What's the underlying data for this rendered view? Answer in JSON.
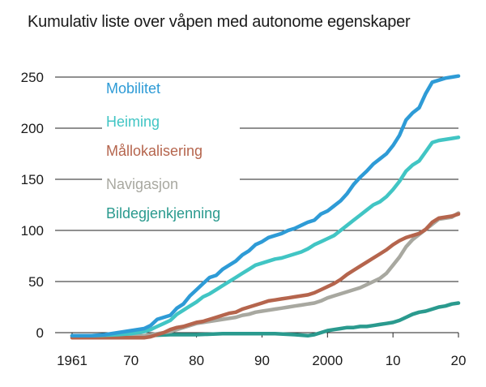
{
  "chart_data": {
    "type": "line",
    "title": "Kumulativ liste over våpen med autonome egenskaper",
    "xlabel": "",
    "ylabel": "",
    "xlim": [
      1961,
      2020
    ],
    "ylim": [
      0,
      250
    ],
    "grid": true,
    "x_ticks": [
      {
        "value": 1961,
        "label": "1961"
      },
      {
        "value": 1970,
        "label": "70"
      },
      {
        "value": 1980,
        "label": "80"
      },
      {
        "value": 1990,
        "label": "90"
      },
      {
        "value": 2000,
        "label": "2000"
      },
      {
        "value": 2010,
        "label": "10"
      },
      {
        "value": 2020,
        "label": "20"
      }
    ],
    "y_ticks": [
      {
        "value": 0,
        "label": "0"
      },
      {
        "value": 50,
        "label": "50"
      },
      {
        "value": 100,
        "label": "100"
      },
      {
        "value": 150,
        "label": "150"
      },
      {
        "value": 200,
        "label": "200"
      },
      {
        "value": 250,
        "label": "250"
      }
    ],
    "legend_position": "top-left",
    "series": [
      {
        "name": "Mobilitet",
        "color": "#2e9bd6",
        "points": [
          [
            1961,
            -3
          ],
          [
            1962,
            -3
          ],
          [
            1964,
            -3
          ],
          [
            1966,
            -2
          ],
          [
            1968,
            0
          ],
          [
            1970,
            2
          ],
          [
            1972,
            4
          ],
          [
            1973,
            7
          ],
          [
            1974,
            13
          ],
          [
            1976,
            17
          ],
          [
            1977,
            24
          ],
          [
            1978,
            28
          ],
          [
            1979,
            36
          ],
          [
            1980,
            42
          ],
          [
            1981,
            48
          ],
          [
            1982,
            54
          ],
          [
            1983,
            56
          ],
          [
            1984,
            62
          ],
          [
            1985,
            66
          ],
          [
            1986,
            70
          ],
          [
            1987,
            76
          ],
          [
            1988,
            80
          ],
          [
            1989,
            86
          ],
          [
            1990,
            89
          ],
          [
            1991,
            93
          ],
          [
            1992,
            95
          ],
          [
            1993,
            97
          ],
          [
            1994,
            100
          ],
          [
            1995,
            102
          ],
          [
            1996,
            105
          ],
          [
            1997,
            108
          ],
          [
            1998,
            110
          ],
          [
            1999,
            116
          ],
          [
            2000,
            119
          ],
          [
            2001,
            124
          ],
          [
            2002,
            129
          ],
          [
            2003,
            136
          ],
          [
            2004,
            145
          ],
          [
            2005,
            152
          ],
          [
            2006,
            158
          ],
          [
            2007,
            165
          ],
          [
            2008,
            170
          ],
          [
            2009,
            175
          ],
          [
            2010,
            183
          ],
          [
            2011,
            193
          ],
          [
            2012,
            208
          ],
          [
            2013,
            215
          ],
          [
            2014,
            220
          ],
          [
            2015,
            234
          ],
          [
            2016,
            245
          ],
          [
            2017,
            247
          ],
          [
            2018,
            249
          ],
          [
            2019,
            250
          ],
          [
            2020,
            251
          ]
        ]
      },
      {
        "name": "Heiming",
        "color": "#41c5c4",
        "points": [
          [
            1961,
            -3
          ],
          [
            1964,
            -3
          ],
          [
            1968,
            -2
          ],
          [
            1970,
            -1
          ],
          [
            1972,
            1
          ],
          [
            1973,
            3
          ],
          [
            1974,
            6
          ],
          [
            1975,
            9
          ],
          [
            1976,
            12
          ],
          [
            1977,
            18
          ],
          [
            1978,
            22
          ],
          [
            1979,
            26
          ],
          [
            1980,
            30
          ],
          [
            1981,
            35
          ],
          [
            1982,
            38
          ],
          [
            1983,
            42
          ],
          [
            1984,
            46
          ],
          [
            1985,
            50
          ],
          [
            1986,
            54
          ],
          [
            1987,
            58
          ],
          [
            1988,
            62
          ],
          [
            1989,
            66
          ],
          [
            1990,
            68
          ],
          [
            1991,
            70
          ],
          [
            1992,
            72
          ],
          [
            1993,
            73
          ],
          [
            1994,
            75
          ],
          [
            1995,
            77
          ],
          [
            1996,
            79
          ],
          [
            1997,
            82
          ],
          [
            1998,
            86
          ],
          [
            1999,
            89
          ],
          [
            2000,
            92
          ],
          [
            2001,
            95
          ],
          [
            2002,
            100
          ],
          [
            2003,
            105
          ],
          [
            2004,
            110
          ],
          [
            2005,
            115
          ],
          [
            2006,
            120
          ],
          [
            2007,
            125
          ],
          [
            2008,
            128
          ],
          [
            2009,
            133
          ],
          [
            2010,
            140
          ],
          [
            2011,
            148
          ],
          [
            2012,
            158
          ],
          [
            2013,
            164
          ],
          [
            2014,
            168
          ],
          [
            2015,
            177
          ],
          [
            2016,
            186
          ],
          [
            2017,
            188
          ],
          [
            2018,
            189
          ],
          [
            2019,
            190
          ],
          [
            2020,
            191
          ]
        ]
      },
      {
        "name": "Mållokalisering",
        "color": "#b5654d",
        "points": [
          [
            1961,
            -5
          ],
          [
            1964,
            -5
          ],
          [
            1968,
            -5
          ],
          [
            1972,
            -5
          ],
          [
            1973,
            -4
          ],
          [
            1974,
            -2
          ],
          [
            1975,
            0
          ],
          [
            1976,
            3
          ],
          [
            1977,
            5
          ],
          [
            1978,
            6
          ],
          [
            1979,
            8
          ],
          [
            1980,
            10
          ],
          [
            1981,
            11
          ],
          [
            1982,
            13
          ],
          [
            1983,
            15
          ],
          [
            1984,
            17
          ],
          [
            1985,
            19
          ],
          [
            1986,
            20
          ],
          [
            1987,
            23
          ],
          [
            1988,
            25
          ],
          [
            1989,
            27
          ],
          [
            1990,
            29
          ],
          [
            1991,
            31
          ],
          [
            1992,
            32
          ],
          [
            1993,
            33
          ],
          [
            1994,
            34
          ],
          [
            1995,
            35
          ],
          [
            1996,
            36
          ],
          [
            1997,
            37
          ],
          [
            1998,
            39
          ],
          [
            1999,
            42
          ],
          [
            2000,
            45
          ],
          [
            2001,
            48
          ],
          [
            2002,
            52
          ],
          [
            2003,
            57
          ],
          [
            2004,
            61
          ],
          [
            2005,
            65
          ],
          [
            2006,
            69
          ],
          [
            2007,
            73
          ],
          [
            2008,
            77
          ],
          [
            2009,
            81
          ],
          [
            2010,
            86
          ],
          [
            2011,
            90
          ],
          [
            2012,
            93
          ],
          [
            2013,
            95
          ],
          [
            2014,
            97
          ],
          [
            2015,
            101
          ],
          [
            2016,
            108
          ],
          [
            2017,
            112
          ],
          [
            2018,
            113
          ],
          [
            2019,
            114
          ],
          [
            2020,
            116
          ]
        ]
      },
      {
        "name": "Navigasjon",
        "color": "#a8a8a0",
        "points": [
          [
            1961,
            -4
          ],
          [
            1964,
            -4
          ],
          [
            1968,
            -4
          ],
          [
            1972,
            -3
          ],
          [
            1974,
            -1
          ],
          [
            1976,
            1
          ],
          [
            1977,
            3
          ],
          [
            1978,
            5
          ],
          [
            1979,
            7
          ],
          [
            1980,
            9
          ],
          [
            1981,
            10
          ],
          [
            1982,
            11
          ],
          [
            1983,
            12
          ],
          [
            1984,
            13
          ],
          [
            1985,
            14
          ],
          [
            1986,
            15
          ],
          [
            1987,
            17
          ],
          [
            1988,
            18
          ],
          [
            1989,
            20
          ],
          [
            1990,
            21
          ],
          [
            1991,
            22
          ],
          [
            1992,
            23
          ],
          [
            1993,
            24
          ],
          [
            1994,
            25
          ],
          [
            1995,
            26
          ],
          [
            1996,
            27
          ],
          [
            1997,
            28
          ],
          [
            1998,
            29
          ],
          [
            1999,
            31
          ],
          [
            2000,
            34
          ],
          [
            2001,
            36
          ],
          [
            2002,
            38
          ],
          [
            2003,
            40
          ],
          [
            2004,
            42
          ],
          [
            2005,
            44
          ],
          [
            2006,
            47
          ],
          [
            2007,
            50
          ],
          [
            2008,
            53
          ],
          [
            2009,
            58
          ],
          [
            2010,
            66
          ],
          [
            2011,
            74
          ],
          [
            2012,
            84
          ],
          [
            2013,
            91
          ],
          [
            2014,
            96
          ],
          [
            2015,
            101
          ],
          [
            2016,
            106
          ],
          [
            2017,
            111
          ],
          [
            2018,
            112
          ],
          [
            2019,
            113
          ],
          [
            2020,
            117
          ]
        ]
      },
      {
        "name": "Bildegjenkjenning",
        "color": "#2a9a8e",
        "points": [
          [
            1961,
            -3
          ],
          [
            1964,
            -3
          ],
          [
            1968,
            -3
          ],
          [
            1972,
            -3
          ],
          [
            1976,
            -2
          ],
          [
            1980,
            -2
          ],
          [
            1984,
            -1
          ],
          [
            1988,
            -1
          ],
          [
            1992,
            -1
          ],
          [
            1995,
            -2
          ],
          [
            1997,
            -3
          ],
          [
            1998,
            -2
          ],
          [
            1999,
            0
          ],
          [
            2000,
            2
          ],
          [
            2001,
            3
          ],
          [
            2002,
            4
          ],
          [
            2003,
            5
          ],
          [
            2004,
            5
          ],
          [
            2005,
            6
          ],
          [
            2006,
            6
          ],
          [
            2007,
            7
          ],
          [
            2008,
            8
          ],
          [
            2009,
            9
          ],
          [
            2010,
            10
          ],
          [
            2011,
            12
          ],
          [
            2012,
            15
          ],
          [
            2013,
            18
          ],
          [
            2014,
            20
          ],
          [
            2015,
            21
          ],
          [
            2016,
            23
          ],
          [
            2017,
            25
          ],
          [
            2018,
            26
          ],
          [
            2019,
            28
          ],
          [
            2020,
            29
          ]
        ]
      }
    ]
  }
}
